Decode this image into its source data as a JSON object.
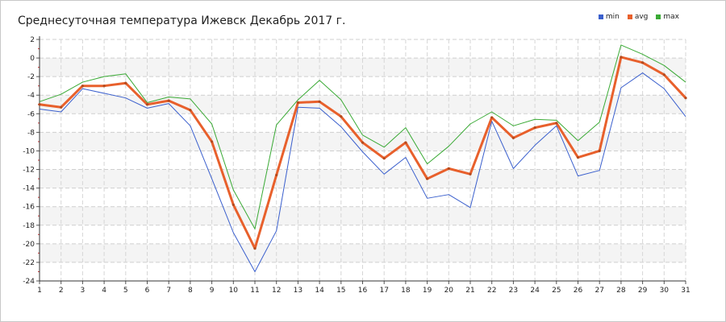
{
  "chart_data": {
    "type": "line",
    "title": "Среднесуточная температура Ижевск  Декабрь 2017 г.",
    "xlabel": "",
    "ylabel": "",
    "x": [
      1,
      2,
      3,
      4,
      5,
      6,
      7,
      8,
      9,
      10,
      11,
      12,
      13,
      14,
      15,
      16,
      17,
      18,
      19,
      20,
      21,
      22,
      23,
      24,
      25,
      26,
      27,
      28,
      29,
      30,
      31
    ],
    "ylim": [
      -24,
      2
    ],
    "yticks": [
      2,
      0,
      -2,
      -4,
      -6,
      -8,
      -10,
      -12,
      -14,
      -16,
      -18,
      -20,
      -22,
      -24
    ],
    "grid": true,
    "legend_position": "top-right",
    "series": [
      {
        "name": "min",
        "color": "#3a5fcd",
        "values": [
          -5.5,
          -5.8,
          -3.3,
          -3.8,
          -4.3,
          -5.4,
          -4.9,
          -7.3,
          -13.0,
          -18.8,
          -23.0,
          -18.6,
          -5.3,
          -5.4,
          -7.4,
          -10.1,
          -12.5,
          -10.7,
          -15.1,
          -14.7,
          -16.1,
          -6.8,
          -11.9,
          -9.4,
          -7.3,
          -12.7,
          -12.1,
          -3.2,
          -1.6,
          -3.3,
          -6.3
        ]
      },
      {
        "name": "avg",
        "color": "#e8602c",
        "values": [
          -5.0,
          -5.3,
          -3.0,
          -3.0,
          -2.7,
          -5.0,
          -4.6,
          -5.6,
          -9.0,
          -15.8,
          -20.5,
          -12.6,
          -4.8,
          -4.7,
          -6.3,
          -9.1,
          -10.8,
          -9.1,
          -13.0,
          -11.9,
          -12.5,
          -6.4,
          -8.6,
          -7.5,
          -7.0,
          -10.7,
          -10.0,
          0.1,
          -0.5,
          -1.8,
          -4.3
        ]
      },
      {
        "name": "max",
        "color": "#3aaa35",
        "values": [
          -4.7,
          -3.9,
          -2.6,
          -2.0,
          -1.7,
          -4.8,
          -4.2,
          -4.4,
          -7.1,
          -14.2,
          -18.4,
          -7.2,
          -4.5,
          -2.4,
          -4.5,
          -8.3,
          -9.6,
          -7.5,
          -11.4,
          -9.5,
          -7.1,
          -5.8,
          -7.3,
          -6.6,
          -6.7,
          -8.9,
          -6.9,
          1.4,
          0.4,
          -0.8,
          -2.6
        ]
      }
    ]
  }
}
